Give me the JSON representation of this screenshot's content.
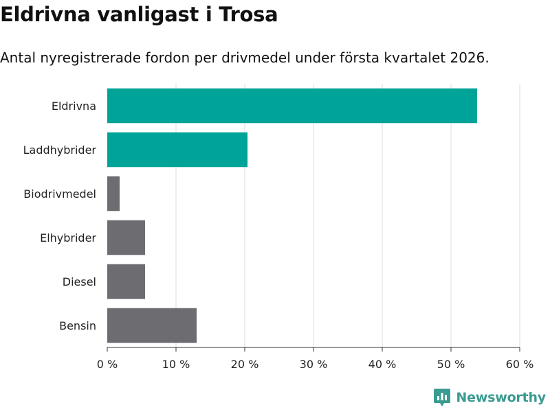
{
  "title": "Eldrivna vanligast i Trosa",
  "subtitle": "Antal nyregistrerade fordon per drivmedel under första kvartalet 2026.",
  "brand": {
    "name": "Newsworthy",
    "icon": "newsworthy-logo-icon",
    "color": "#3a9b91"
  },
  "chart_data": {
    "type": "bar",
    "orientation": "horizontal",
    "title": "Eldrivna vanligast i Trosa",
    "subtitle": "Antal nyregistrerade fordon per drivmedel under första kvartalet 2026.",
    "xlabel": "",
    "ylabel": "",
    "categories": [
      "Eldrivna",
      "Laddhybrider",
      "Biodrivmedel",
      "Elhybrider",
      "Diesel",
      "Bensin"
    ],
    "values": [
      53.8,
      20.4,
      1.8,
      5.5,
      5.5,
      13.0
    ],
    "unit": "%",
    "xlim": [
      0,
      60
    ],
    "xticks": [
      0,
      10,
      20,
      30,
      40,
      50,
      60
    ],
    "tick_labels": [
      "0 %",
      "10 %",
      "20 %",
      "30 %",
      "40 %",
      "50 %",
      "60 %"
    ],
    "grid": true,
    "highlight_categories": [
      "Eldrivna",
      "Laddhybrider"
    ],
    "colors": {
      "highlight": "#00a398",
      "default": "#6d6c71",
      "grid": "#dddddd",
      "axis": "#333333"
    }
  }
}
